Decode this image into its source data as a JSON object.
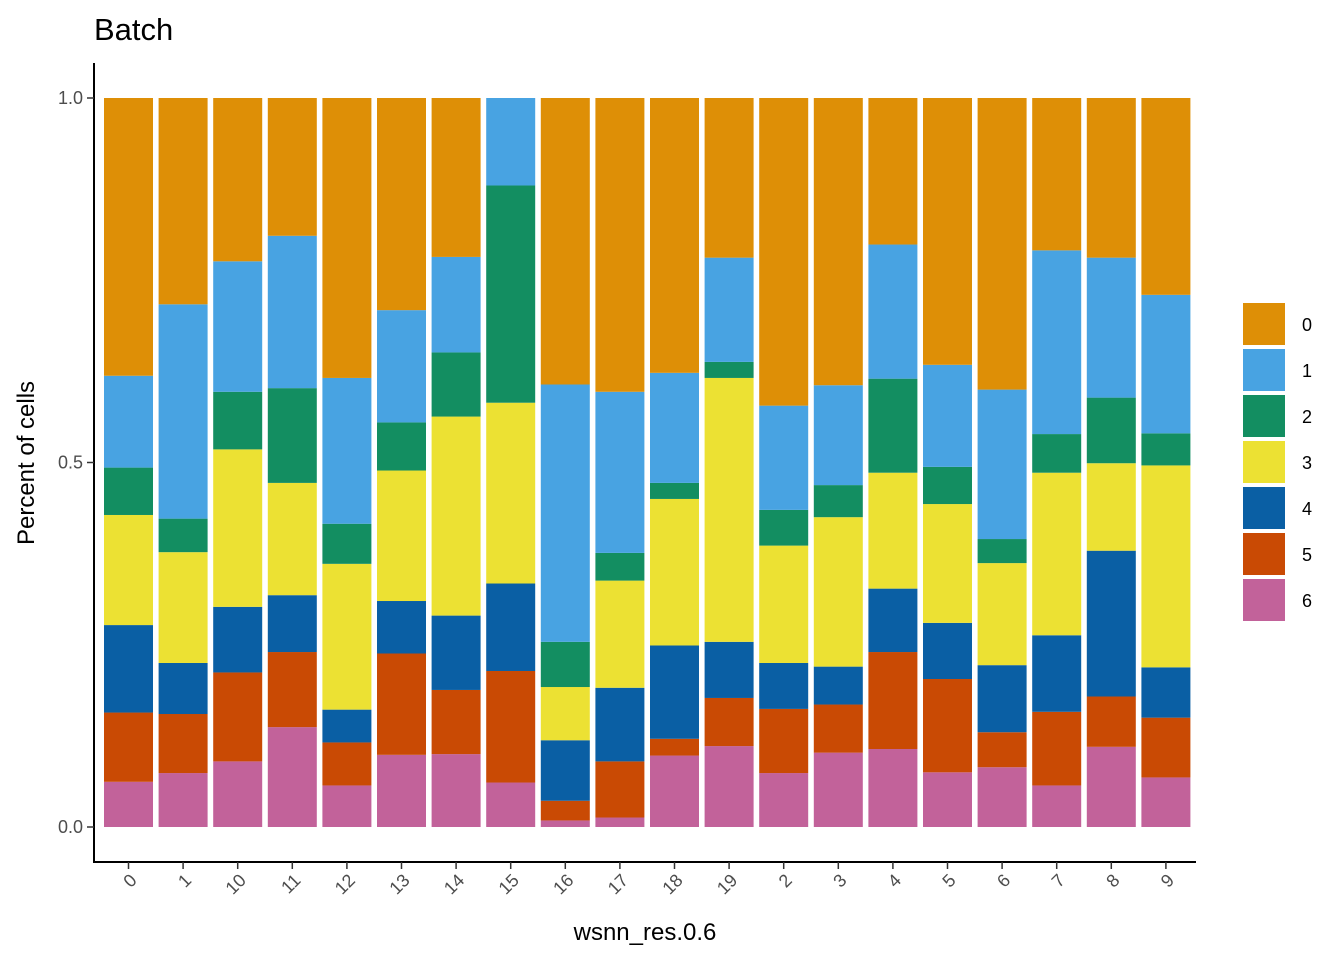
{
  "chart_data": {
    "type": "bar",
    "stacked": true,
    "title": "Batch",
    "xlabel": "wsnn_res.0.6",
    "ylabel": "Percent of cells",
    "ylim": [
      0,
      1
    ],
    "yticks": [
      0.0,
      0.5,
      1.0
    ],
    "ytick_labels": [
      "0.0",
      "0.5",
      "1.0"
    ],
    "legend_position": "right",
    "categories": [
      "0",
      "1",
      "10",
      "11",
      "12",
      "13",
      "14",
      "15",
      "16",
      "17",
      "18",
      "19",
      "2",
      "3",
      "4",
      "5",
      "6",
      "7",
      "8",
      "9"
    ],
    "series": [
      {
        "name": "6",
        "color": "#C2629A",
        "values": [
          0.062,
          0.074,
          0.09,
          0.137,
          0.057,
          0.099,
          0.1,
          0.061,
          0.009,
          0.013,
          0.098,
          0.111,
          0.074,
          0.102,
          0.107,
          0.075,
          0.082,
          0.057,
          0.11,
          0.068
        ]
      },
      {
        "name": "5",
        "color": "#C94A04",
        "values": [
          0.095,
          0.081,
          0.122,
          0.103,
          0.059,
          0.139,
          0.088,
          0.153,
          0.027,
          0.077,
          0.023,
          0.066,
          0.088,
          0.066,
          0.133,
          0.128,
          0.048,
          0.101,
          0.069,
          0.082
        ]
      },
      {
        "name": "4",
        "color": "#0A5FA4",
        "values": [
          0.12,
          0.07,
          0.09,
          0.078,
          0.045,
          0.072,
          0.102,
          0.12,
          0.083,
          0.101,
          0.128,
          0.077,
          0.063,
          0.052,
          0.087,
          0.077,
          0.092,
          0.105,
          0.2,
          0.069
        ]
      },
      {
        "name": "3",
        "color": "#ECE133",
        "values": [
          0.151,
          0.152,
          0.216,
          0.154,
          0.2,
          0.179,
          0.273,
          0.248,
          0.073,
          0.147,
          0.201,
          0.362,
          0.161,
          0.205,
          0.159,
          0.163,
          0.14,
          0.223,
          0.12,
          0.277
        ]
      },
      {
        "name": "2",
        "color": "#138E61",
        "values": [
          0.065,
          0.046,
          0.079,
          0.13,
          0.055,
          0.066,
          0.088,
          0.298,
          0.062,
          0.038,
          0.022,
          0.022,
          0.049,
          0.044,
          0.129,
          0.051,
          0.033,
          0.053,
          0.09,
          0.044
        ]
      },
      {
        "name": "1",
        "color": "#48A3E2",
        "values": [
          0.126,
          0.294,
          0.179,
          0.209,
          0.2,
          0.154,
          0.131,
          0.12,
          0.353,
          0.221,
          0.151,
          0.143,
          0.143,
          0.137,
          0.184,
          0.14,
          0.205,
          0.252,
          0.192,
          0.19
        ]
      },
      {
        "name": "0",
        "color": "#DE8F06",
        "values": [
          0.381,
          0.283,
          0.224,
          0.189,
          0.384,
          0.291,
          0.218,
          0.0,
          0.393,
          0.403,
          0.377,
          0.219,
          0.422,
          0.394,
          0.201,
          0.366,
          0.4,
          0.209,
          0.219,
          0.27
        ]
      }
    ],
    "legend_order": [
      "0",
      "1",
      "2",
      "3",
      "4",
      "5",
      "6"
    ]
  }
}
